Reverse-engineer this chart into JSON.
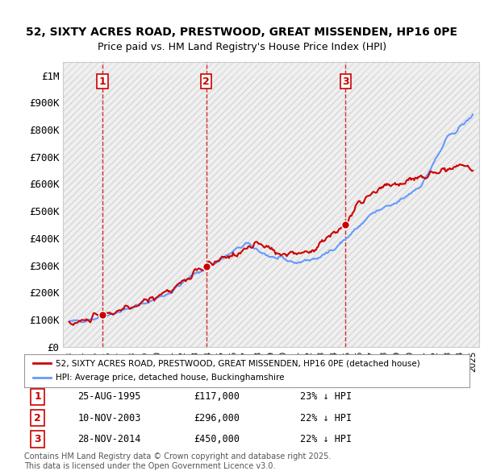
{
  "title_line1": "52, SIXTY ACRES ROAD, PRESTWOOD, GREAT MISSENDEN, HP16 0PE",
  "title_line2": "Price paid vs. HM Land Registry's House Price Index (HPI)",
  "transactions": [
    {
      "num": 1,
      "date_label": "25-AUG-1995",
      "date_x": 1995.647,
      "price": 117000,
      "pct": "23% ↓ HPI"
    },
    {
      "num": 2,
      "date_label": "10-NOV-2003",
      "date_x": 2003.858,
      "price": 296000,
      "pct": "22% ↓ HPI"
    },
    {
      "num": 3,
      "date_label": "28-NOV-2014",
      "date_x": 2014.908,
      "price": 450000,
      "pct": "22% ↓ HPI"
    }
  ],
  "hpi_color": "#6699ff",
  "price_color": "#cc0000",
  "vline_color": "#cc0000",
  "marker_color": "#cc0000",
  "background_hatch_color": "#e8e8e8",
  "ylim": [
    0,
    1050000
  ],
  "xlim": [
    1992.5,
    2025.5
  ],
  "yticks": [
    0,
    100000,
    200000,
    300000,
    400000,
    500000,
    600000,
    700000,
    800000,
    900000,
    1000000
  ],
  "ytick_labels": [
    "£0",
    "£100K",
    "£200K",
    "£300K",
    "£400K",
    "£500K",
    "£600K",
    "£700K",
    "£800K",
    "£900K",
    "£1M"
  ],
  "xticks": [
    1993,
    1994,
    1995,
    1996,
    1997,
    1998,
    1999,
    2000,
    2001,
    2002,
    2003,
    2004,
    2005,
    2006,
    2007,
    2008,
    2009,
    2010,
    2011,
    2012,
    2013,
    2014,
    2015,
    2016,
    2017,
    2018,
    2019,
    2020,
    2021,
    2022,
    2023,
    2024,
    2025
  ],
  "legend_label_price": "52, SIXTY ACRES ROAD, PRESTWOOD, GREAT MISSENDEN, HP16 0PE (detached house)",
  "legend_label_hpi": "HPI: Average price, detached house, Buckinghamshire",
  "footer": "Contains HM Land Registry data © Crown copyright and database right 2025.\nThis data is licensed under the Open Government Licence v3.0.",
  "fig_width": 6.0,
  "fig_height": 5.9,
  "dpi": 100
}
